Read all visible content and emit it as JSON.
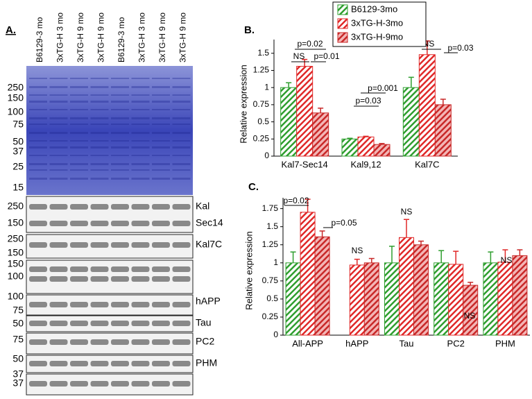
{
  "panel_a": {
    "label": "A.",
    "lanes": [
      "B6129-3 mo",
      "3xTG-H 3 mo",
      "3xTG-H 9 mo",
      "3xTG-H 9 mo",
      "B6129-3 mo",
      "3xTG-H 3 mo",
      "3xTG-H 9 mo",
      "3xTG-H 9 mo"
    ],
    "gel_markers": [
      250,
      150,
      100,
      75,
      50,
      37,
      25,
      15
    ],
    "blot_markers": [
      250,
      150,
      250,
      150,
      150,
      100,
      100,
      75,
      50,
      75,
      50,
      37,
      37
    ],
    "band_labels": [
      "Kal",
      "Sec14",
      "Kal7C",
      "hAPP",
      "Tau",
      "PC2",
      "PHM"
    ]
  },
  "chart_data": [
    {
      "type": "bar",
      "label": "B.",
      "y_label": "Relative expression",
      "categories": [
        "Kal7-Sec14",
        "Kal9,12",
        "Kal7C"
      ],
      "series": [
        {
          "name": "B6129-3mo",
          "color": "#2e9e2e",
          "values": [
            1.0,
            0.25,
            1.0
          ],
          "errors": [
            0.07,
            0.01,
            0.15
          ]
        },
        {
          "name": "3xTG-H-3mo",
          "color": "#e02828",
          "values": [
            1.31,
            0.28,
            1.48
          ],
          "errors": [
            0.1,
            0.01,
            0.2
          ]
        },
        {
          "name": "3xTG-H-9mo",
          "color": "#c82828",
          "values": [
            0.63,
            0.17,
            0.75
          ],
          "errors": [
            0.07,
            0.015,
            0.08
          ]
        }
      ],
      "ylim": [
        0,
        1.7
      ],
      "yticks": [
        0,
        0.25,
        0.5,
        0.75,
        1,
        1.25,
        1.5
      ],
      "annotations": [
        "p=0.02",
        "NS",
        "p=0.01",
        "p=0.001",
        "p=0.03",
        "NS",
        "p=0.03"
      ]
    },
    {
      "type": "bar",
      "label": "C.",
      "y_label": "Relative expression",
      "categories": [
        "All-APP",
        "hAPP",
        "Tau",
        "PC2",
        "PHM"
      ],
      "series": [
        {
          "color": "#2e9e2e",
          "values": [
            1,
            null,
            1,
            1,
            1
          ],
          "errors": [
            0.15,
            null,
            0.23,
            0.17,
            0.15
          ]
        },
        {
          "color": "#e02828",
          "values": [
            1.7,
            0.97,
            1.35,
            0.98,
            1.01
          ],
          "errors": [
            0.18,
            0.08,
            0.25,
            0.18,
            0.17
          ]
        },
        {
          "color": "#c82828",
          "values": [
            1.36,
            1.0,
            1.25,
            0.69,
            1.1
          ],
          "errors": [
            0.08,
            0.06,
            0.05,
            0.04,
            0.08
          ]
        }
      ],
      "ylim": [
        0,
        1.9
      ],
      "yticks": [
        0,
        0.25,
        0.5,
        0.75,
        1,
        1.25,
        1.5,
        1.75
      ],
      "annotations": [
        "p=0.02",
        "p=0.05",
        "NS",
        "NS",
        "NS",
        "NS"
      ]
    }
  ]
}
